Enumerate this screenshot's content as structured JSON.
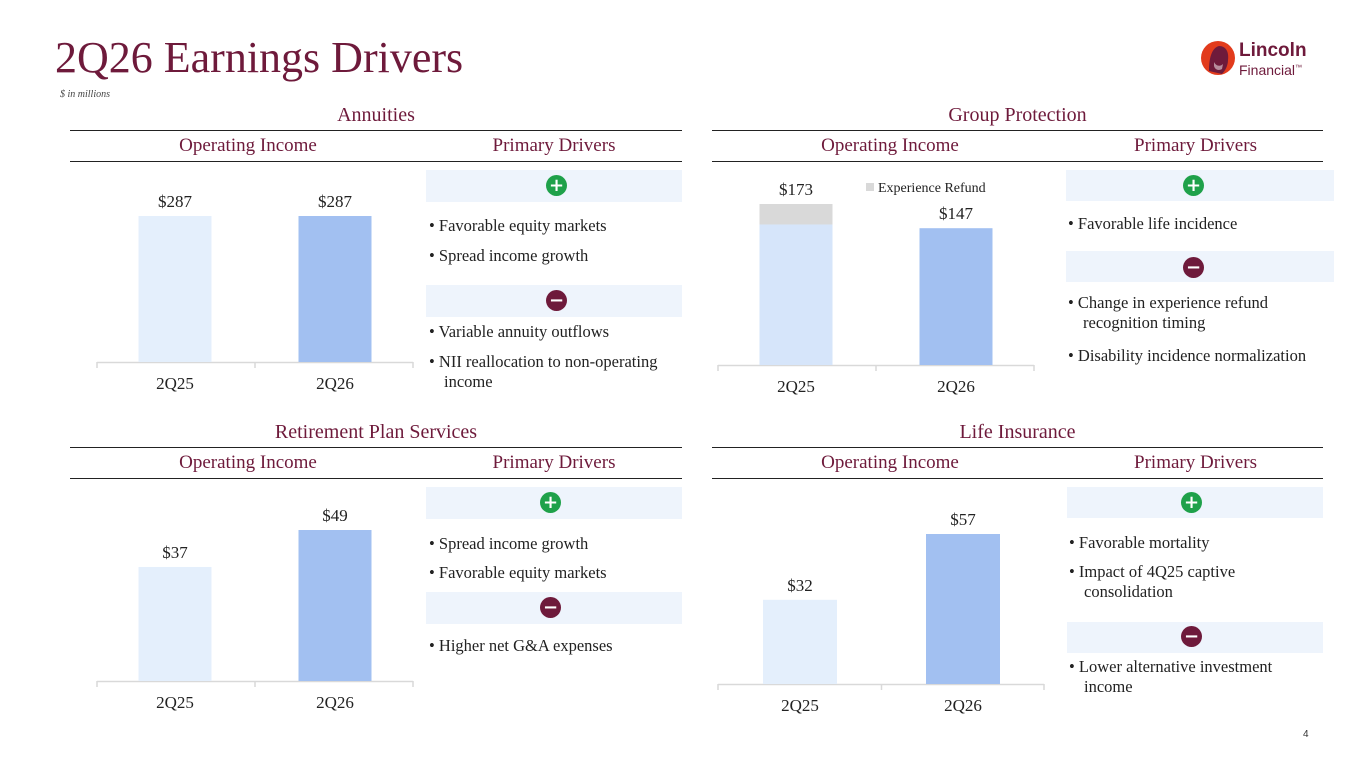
{
  "header": {
    "title": "2Q26 Earnings Drivers",
    "subtitle": "$ in millions",
    "logo_line1": "Lincoln",
    "logo_line2": "Financial",
    "logo_tm": "™"
  },
  "column_labels": {
    "operating_income": "Operating Income",
    "primary_drivers": "Primary Drivers"
  },
  "sections": {
    "annuities": {
      "title": "Annuities",
      "positives": [
        "Favorable equity markets",
        "Spread income growth"
      ],
      "negatives": [
        "Variable annuity outflows",
        "NII reallocation to non-operating income"
      ]
    },
    "group": {
      "title": "Group Protection",
      "legend": "Experience Refund",
      "positives": [
        "Favorable life incidence"
      ],
      "negatives": [
        "Change in experience refund recognition timing",
        "Disability incidence normalization"
      ]
    },
    "rps": {
      "title": "Retirement Plan Services",
      "positives": [
        "Spread income growth",
        "Favorable equity markets"
      ],
      "negatives": [
        "Higher net G&A expenses"
      ]
    },
    "life": {
      "title": "Life Insurance",
      "positives": [
        "Favorable mortality",
        "Impact of 4Q25 captive consolidation"
      ],
      "negatives": [
        "Lower alternative investment income"
      ]
    }
  },
  "chart_data": [
    {
      "id": "annuities",
      "type": "bar",
      "title": "Annuities",
      "categories": [
        "2Q25",
        "2Q26"
      ],
      "values": [
        287,
        287
      ],
      "labels": [
        "$287",
        "$287"
      ],
      "colors": [
        "#e4effc",
        "#a2c0f1"
      ]
    },
    {
      "id": "group",
      "type": "bar",
      "title": "Group Protection",
      "stacked": true,
      "categories": [
        "2Q25",
        "2Q26"
      ],
      "values": [
        173,
        147
      ],
      "labels": [
        "$173",
        "$147"
      ],
      "series": [
        {
          "name": "",
          "values": [
            151,
            147
          ],
          "colors": [
            "#d6e5fa",
            "#a2c0f1"
          ]
        },
        {
          "name": "Experience Refund",
          "values": [
            22,
            0
          ],
          "colors": [
            "#d9d9d9",
            "#d9d9d9"
          ]
        }
      ]
    },
    {
      "id": "rps",
      "type": "bar",
      "title": "Retirement Plan Services",
      "categories": [
        "2Q25",
        "2Q26"
      ],
      "values": [
        37,
        49
      ],
      "labels": [
        "$37",
        "$49"
      ],
      "colors": [
        "#e4effc",
        "#a2c0f1"
      ]
    },
    {
      "id": "life",
      "type": "bar",
      "title": "Life Insurance",
      "categories": [
        "2Q25",
        "2Q26"
      ],
      "values": [
        32,
        57
      ],
      "labels": [
        "$32",
        "$57"
      ],
      "colors": [
        "#e4effc",
        "#a2c0f1"
      ]
    }
  ],
  "page_number": "4",
  "icons": {
    "plus": "plus-icon",
    "minus": "minus-icon"
  },
  "colors": {
    "brand": "#6e1a3b",
    "positive": "#1fa14a",
    "band": "#eef4fc"
  }
}
